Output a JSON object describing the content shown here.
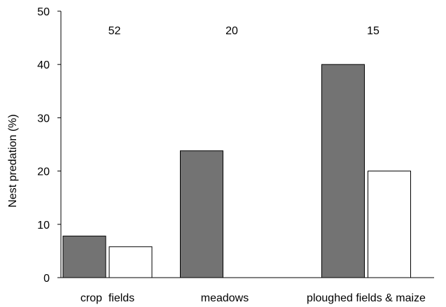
{
  "chart_data": {
    "type": "bar",
    "ylabel": "Nest predation (%)",
    "xlabel": "",
    "ylim": [
      0,
      50
    ],
    "yticks": [
      0,
      10,
      20,
      30,
      40,
      50
    ],
    "grid": false,
    "categories": [
      "crop  fields",
      "meadows",
      "ploughed fields & maize"
    ],
    "category_annotations": [
      "52",
      "20",
      "15"
    ],
    "series": [
      {
        "values": [
          7.8,
          23.8,
          40
        ],
        "color": "#737373"
      },
      {
        "values": [
          5.8,
          null,
          20
        ],
        "color": "#ffffff"
      }
    ]
  }
}
